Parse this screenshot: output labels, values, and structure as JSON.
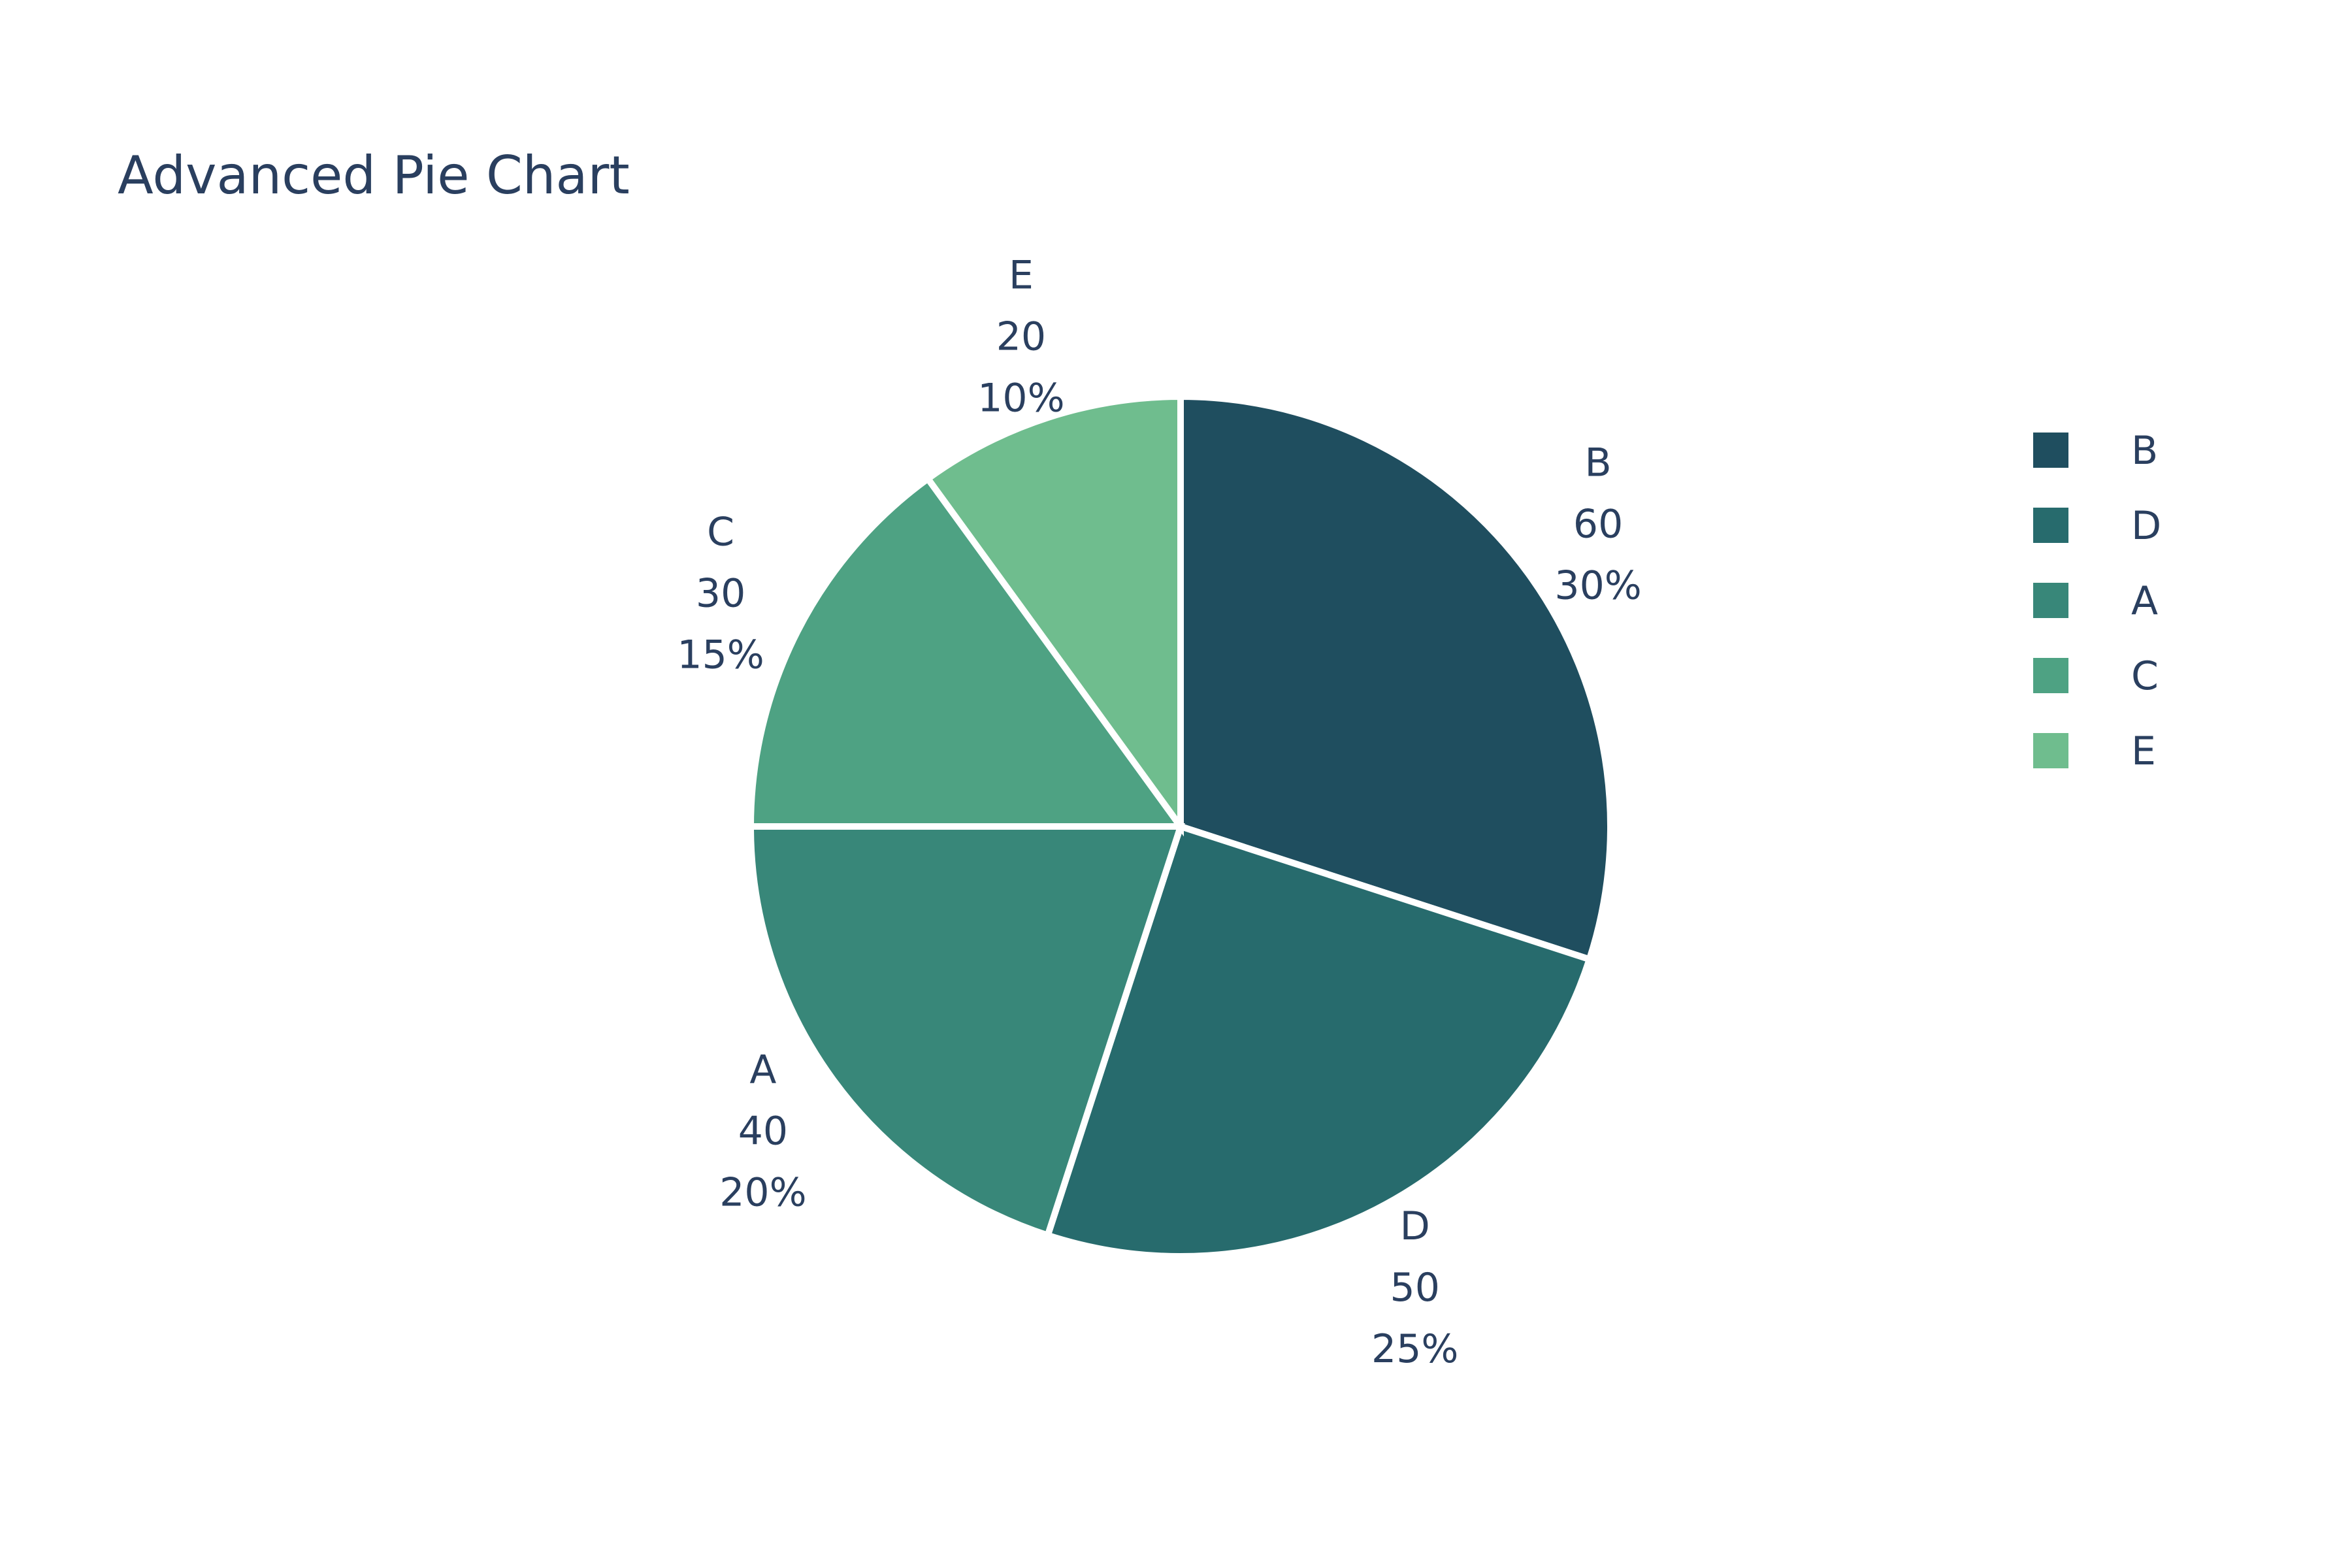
{
  "chart_data": {
    "type": "pie",
    "title": "Advanced Pie Chart",
    "direction": "clockwise",
    "start": "top",
    "sort": "descending",
    "legend_position": "top-right",
    "slices": [
      {
        "label": "B",
        "value": 60,
        "percent": "30%",
        "color": "#1f4e5f"
      },
      {
        "label": "D",
        "value": 50,
        "percent": "25%",
        "color": "#276b6d"
      },
      {
        "label": "A",
        "value": 40,
        "percent": "20%",
        "color": "#388779"
      },
      {
        "label": "C",
        "value": 30,
        "percent": "15%",
        "color": "#4ea283"
      },
      {
        "label": "E",
        "value": 20,
        "percent": "10%",
        "color": "#6fbd8e"
      }
    ]
  }
}
